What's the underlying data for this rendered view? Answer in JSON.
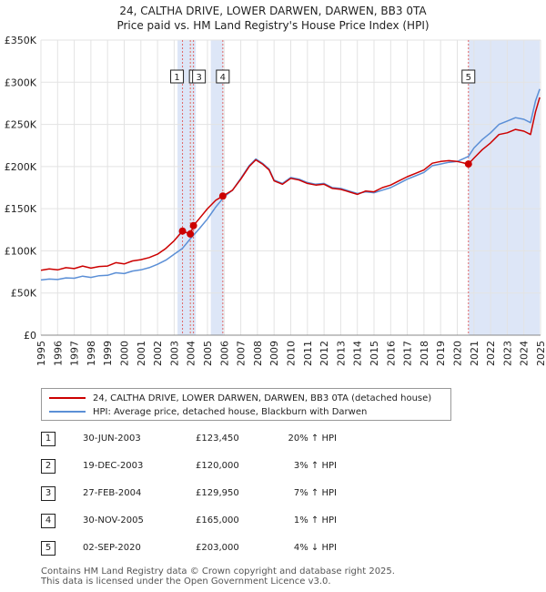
{
  "title_line1": "24, CALTHA DRIVE, LOWER DARWEN, DARWEN, BB3 0TA",
  "title_line2": "Price paid vs. HM Land Registry's House Price Index (HPI)",
  "chart_data": {
    "type": "line",
    "xlim": [
      1995,
      2025
    ],
    "ylim": [
      0,
      350000
    ],
    "yticks": [
      0,
      50000,
      100000,
      150000,
      200000,
      250000,
      300000,
      350000
    ],
    "ytick_labels": [
      "£0",
      "£50K",
      "£100K",
      "£150K",
      "£200K",
      "£250K",
      "£300K",
      "£350K"
    ],
    "xticks": [
      1995,
      1996,
      1997,
      1998,
      1999,
      2000,
      2001,
      2002,
      2003,
      2004,
      2005,
      2006,
      2007,
      2008,
      2009,
      2010,
      2011,
      2012,
      2013,
      2014,
      2015,
      2016,
      2017,
      2018,
      2019,
      2020,
      2021,
      2022,
      2023,
      2024,
      2025
    ],
    "colors": {
      "property": "#cc0000",
      "hpi": "#5b8fd6",
      "shade": "#dde6f7",
      "vline": "#e06666"
    },
    "series": [
      {
        "name": "24, CALTHA DRIVE, LOWER DARWEN, DARWEN, BB3 0TA (detached house)",
        "points": [
          [
            1995.0,
            77000
          ],
          [
            1995.5,
            78500
          ],
          [
            1996.0,
            77500
          ],
          [
            1996.5,
            80000
          ],
          [
            1997.0,
            79000
          ],
          [
            1997.5,
            82000
          ],
          [
            1998.0,
            79500
          ],
          [
            1998.5,
            81500
          ],
          [
            1999.0,
            82000
          ],
          [
            1999.5,
            86000
          ],
          [
            2000.0,
            84500
          ],
          [
            2000.5,
            88000
          ],
          [
            2001.0,
            89500
          ],
          [
            2001.5,
            92000
          ],
          [
            2002.0,
            96000
          ],
          [
            2002.5,
            103000
          ],
          [
            2003.0,
            112000
          ],
          [
            2003.5,
            123450
          ],
          [
            2003.97,
            120000
          ],
          [
            2004.16,
            129950
          ],
          [
            2004.5,
            138000
          ],
          [
            2005.0,
            150000
          ],
          [
            2005.5,
            160000
          ],
          [
            2005.92,
            165000
          ],
          [
            2006.5,
            172000
          ],
          [
            2007.0,
            185000
          ],
          [
            2007.5,
            200000
          ],
          [
            2007.9,
            208000
          ],
          [
            2008.3,
            203000
          ],
          [
            2008.7,
            196000
          ],
          [
            2009.0,
            183000
          ],
          [
            2009.5,
            179000
          ],
          [
            2010.0,
            186000
          ],
          [
            2010.5,
            184000
          ],
          [
            2011.0,
            180000
          ],
          [
            2011.5,
            178000
          ],
          [
            2012.0,
            179000
          ],
          [
            2012.5,
            174000
          ],
          [
            2013.0,
            173000
          ],
          [
            2013.5,
            170000
          ],
          [
            2014.0,
            167000
          ],
          [
            2014.5,
            171000
          ],
          [
            2015.0,
            170000
          ],
          [
            2015.5,
            175000
          ],
          [
            2016.0,
            178000
          ],
          [
            2016.5,
            183000
          ],
          [
            2017.0,
            188000
          ],
          [
            2017.5,
            192000
          ],
          [
            2018.0,
            196000
          ],
          [
            2018.5,
            204000
          ],
          [
            2019.0,
            206000
          ],
          [
            2019.5,
            207000
          ],
          [
            2020.0,
            206000
          ],
          [
            2020.67,
            203000
          ],
          [
            2021.0,
            210000
          ],
          [
            2021.5,
            220000
          ],
          [
            2022.0,
            228000
          ],
          [
            2022.5,
            238000
          ],
          [
            2023.0,
            240000
          ],
          [
            2023.5,
            244000
          ],
          [
            2024.0,
            242000
          ],
          [
            2024.4,
            238000
          ],
          [
            2024.7,
            265000
          ],
          [
            2024.95,
            282000
          ]
        ]
      },
      {
        "name": "HPI: Average price, detached house, Blackburn with Darwen",
        "points": [
          [
            1995.0,
            65500
          ],
          [
            1995.5,
            66500
          ],
          [
            1996.0,
            66000
          ],
          [
            1996.5,
            68000
          ],
          [
            1997.0,
            67500
          ],
          [
            1997.5,
            70000
          ],
          [
            1998.0,
            68500
          ],
          [
            1998.5,
            70500
          ],
          [
            1999.0,
            71000
          ],
          [
            1999.5,
            74000
          ],
          [
            2000.0,
            73000
          ],
          [
            2000.5,
            76000
          ],
          [
            2001.0,
            77500
          ],
          [
            2001.5,
            80000
          ],
          [
            2002.0,
            84000
          ],
          [
            2002.5,
            89000
          ],
          [
            2003.0,
            96000
          ],
          [
            2003.5,
            103000
          ],
          [
            2004.0,
            115000
          ],
          [
            2004.5,
            126000
          ],
          [
            2005.0,
            138000
          ],
          [
            2005.5,
            152000
          ],
          [
            2006.0,
            164000
          ],
          [
            2006.5,
            172000
          ],
          [
            2007.0,
            186000
          ],
          [
            2007.5,
            201000
          ],
          [
            2007.9,
            209000
          ],
          [
            2008.3,
            204000
          ],
          [
            2008.7,
            197000
          ],
          [
            2009.0,
            184000
          ],
          [
            2009.5,
            180000
          ],
          [
            2010.0,
            187000
          ],
          [
            2010.5,
            185000
          ],
          [
            2011.0,
            181000
          ],
          [
            2011.5,
            179000
          ],
          [
            2012.0,
            180000
          ],
          [
            2012.5,
            175000
          ],
          [
            2013.0,
            174000
          ],
          [
            2013.5,
            171000
          ],
          [
            2014.0,
            168000
          ],
          [
            2014.5,
            170000
          ],
          [
            2015.0,
            169000
          ],
          [
            2015.5,
            172000
          ],
          [
            2016.0,
            175000
          ],
          [
            2016.5,
            180000
          ],
          [
            2017.0,
            185000
          ],
          [
            2017.5,
            189000
          ],
          [
            2018.0,
            193000
          ],
          [
            2018.5,
            201000
          ],
          [
            2019.0,
            203000
          ],
          [
            2019.5,
            205000
          ],
          [
            2020.0,
            206000
          ],
          [
            2020.67,
            212000
          ],
          [
            2021.0,
            222000
          ],
          [
            2021.5,
            232000
          ],
          [
            2022.0,
            240000
          ],
          [
            2022.5,
            250000
          ],
          [
            2023.0,
            254000
          ],
          [
            2023.5,
            258000
          ],
          [
            2024.0,
            256000
          ],
          [
            2024.4,
            252000
          ],
          [
            2024.7,
            278000
          ],
          [
            2024.95,
            292000
          ]
        ]
      }
    ],
    "shaded_regions": [
      [
        2003.2,
        2004.3
      ],
      [
        2005.2,
        2005.95
      ],
      [
        2020.67,
        2024.95
      ]
    ],
    "transactions": [
      {
        "num": "1",
        "x": 2003.5,
        "y": 123450
      },
      {
        "num": "2",
        "x": 2003.97,
        "y": 120000
      },
      {
        "num": "3",
        "x": 2004.16,
        "y": 129950
      },
      {
        "num": "4",
        "x": 2005.92,
        "y": 165000
      },
      {
        "num": "5",
        "x": 2020.67,
        "y": 203000
      }
    ]
  },
  "legend": {
    "property_label": "24, CALTHA DRIVE, LOWER DARWEN, DARWEN, BB3 0TA (detached house)",
    "hpi_label": "HPI: Average price, detached house, Blackburn with Darwen"
  },
  "table": [
    {
      "num": "1",
      "date": "30-JUN-2003",
      "price": "£123,450",
      "hpi": "20% ↑ HPI"
    },
    {
      "num": "2",
      "date": "19-DEC-2003",
      "price": "£120,000",
      "hpi": "3% ↑ HPI"
    },
    {
      "num": "3",
      "date": "27-FEB-2004",
      "price": "£129,950",
      "hpi": "7% ↑ HPI"
    },
    {
      "num": "4",
      "date": "30-NOV-2005",
      "price": "£165,000",
      "hpi": "1% ↑ HPI"
    },
    {
      "num": "5",
      "date": "02-SEP-2020",
      "price": "£203,000",
      "hpi": "4% ↓ HPI"
    }
  ],
  "footer_line1": "Contains HM Land Registry data © Crown copyright and database right 2025.",
  "footer_line2": "This data is licensed under the Open Government Licence v3.0."
}
